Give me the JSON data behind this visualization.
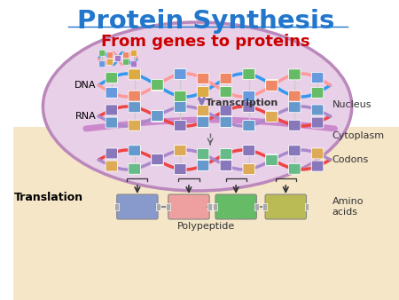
{
  "title": "Protein Synthesis",
  "subtitle": "From genes to proteins",
  "title_color": "#2277CC",
  "subtitle_color": "#CC0000",
  "bg_color": "#FFFFFF",
  "nucleus_bg": "#E8D0E8",
  "cytoplasm_bg": "#F5E6C8",
  "label_dna": "DNA",
  "label_rna": "RNA",
  "label_transcription": "Transcription",
  "label_translation": "Translation",
  "label_nucleus": "Nucleus",
  "label_cytoplasm": "Cytoplasm",
  "label_codons": "Codons",
  "label_amino_acids": "Amino\nacids",
  "label_polypeptide": "Polypeptide",
  "dna_colors": [
    "#66BB66",
    "#DDAA44",
    "#6699DD",
    "#EE8866",
    "#AA77CC"
  ],
  "rna_colors_nucleus": [
    "#8877BB",
    "#6699CC",
    "#DDAA55",
    "#8877BB",
    "#6699CC"
  ],
  "rna_colors_cytoplasm": [
    "#8877BB",
    "#6699CC",
    "#DDAA55",
    "#66BB88",
    "#8877BB"
  ],
  "amino_colors": [
    "#8899CC",
    "#EEA0A0",
    "#66BB66",
    "#BBBB55"
  ]
}
